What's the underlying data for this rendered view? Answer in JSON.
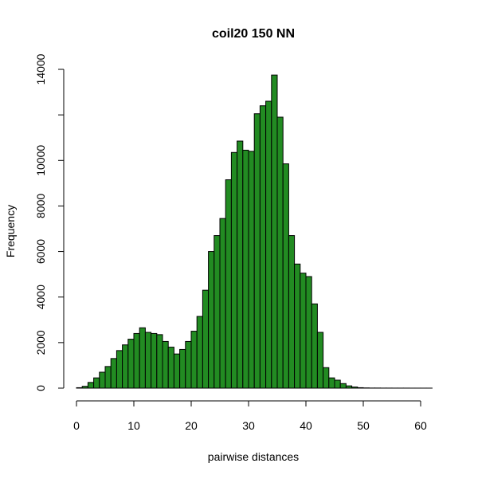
{
  "chart_data": {
    "type": "bar",
    "title": "coil20 150 NN",
    "xlabel": "pairwise distances",
    "ylabel": "Frequency",
    "bar_color": "#228B22",
    "bin_width": 1,
    "bin_start": 0,
    "values": [
      20,
      80,
      250,
      450,
      700,
      950,
      1300,
      1650,
      1900,
      2150,
      2400,
      2650,
      2450,
      2400,
      2350,
      2050,
      1800,
      1500,
      1700,
      2050,
      2500,
      3150,
      4300,
      6000,
      6700,
      7450,
      9150,
      10350,
      10850,
      10450,
      10400,
      12050,
      12400,
      12600,
      13750,
      11900,
      9850,
      6700,
      5450,
      5050,
      4900,
      3700,
      2450,
      900,
      450,
      350,
      200,
      100,
      50,
      20,
      10,
      5,
      5,
      3,
      3,
      2,
      2,
      2,
      1,
      1,
      1,
      1
    ],
    "xlim": [
      0,
      62
    ],
    "ylim": [
      0,
      14000
    ],
    "x_ticks": [
      0,
      10,
      20,
      30,
      40,
      50,
      60
    ],
    "x_tick_labels": [
      "0",
      "10",
      "20",
      "30",
      "40",
      "50",
      "60"
    ],
    "y_ticks": [
      0,
      2000,
      4000,
      6000,
      8000,
      10000,
      12000,
      14000
    ],
    "y_tick_labels": [
      "0",
      "2000",
      "4000",
      "6000",
      "8000",
      "10000",
      "",
      "14000"
    ]
  }
}
